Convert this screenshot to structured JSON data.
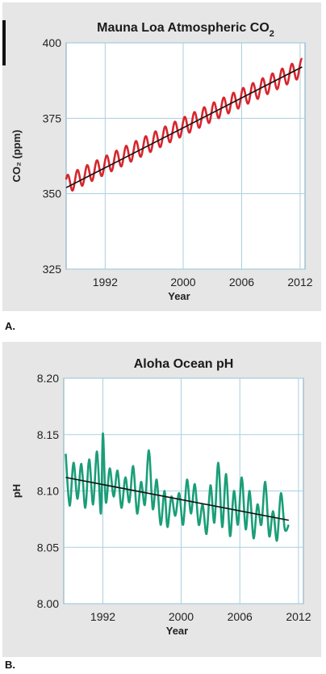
{
  "chart_data": [
    {
      "type": "line",
      "panel_label": "A.",
      "title": "Mauna Loa Atmospheric CO",
      "title_subscript": "2",
      "xlabel": "Year",
      "ylabel": "CO₂ (ppm)",
      "xlim": [
        1988,
        2012.5
      ],
      "ylim": [
        325,
        400
      ],
      "x_ticks": [
        1992,
        2000,
        2006,
        2012
      ],
      "y_ticks": [
        325,
        350,
        375,
        400
      ],
      "grid": true,
      "series": [
        {
          "kind": "seasonal",
          "color": "#d7262e",
          "start_year": 1988,
          "end_year": 2012.2,
          "trend_start": 353,
          "trend_slope": 1.6,
          "amplitude": 3
        },
        {
          "kind": "trend",
          "color": "#111111",
          "x": [
            1988,
            2012.2
          ],
          "y": [
            352,
            392
          ]
        }
      ]
    },
    {
      "type": "line",
      "panel_label": "B.",
      "title": "Aloha Ocean pH",
      "xlabel": "Year",
      "ylabel": "pH",
      "xlim": [
        1988,
        2012.5
      ],
      "ylim": [
        8.0,
        8.2
      ],
      "x_ticks": [
        1992,
        2000,
        2006,
        2012
      ],
      "y_ticks": [
        8.0,
        8.05,
        8.1,
        8.15,
        8.2
      ],
      "y_tick_labels": [
        "8.00",
        "8.05",
        "8.10",
        "8.15",
        "8.20"
      ],
      "grid": true,
      "series": [
        {
          "kind": "measured",
          "color": "#1a9e78",
          "x": [
            1988.2,
            1988.6,
            1989.0,
            1989.4,
            1989.8,
            1990.2,
            1990.6,
            1991.0,
            1991.4,
            1991.8,
            1992.0,
            1992.3,
            1992.7,
            1993.1,
            1993.5,
            1993.9,
            1994.3,
            1994.7,
            1995.1,
            1995.5,
            1995.9,
            1996.3,
            1996.7,
            1997.1,
            1997.5,
            1997.9,
            1998.3,
            1998.6,
            1999.0,
            1999.4,
            1999.8,
            2000.2,
            2000.6,
            2001.0,
            2001.4,
            2001.8,
            2002.2,
            2002.6,
            2003.0,
            2003.4,
            2003.8,
            2004.2,
            2004.6,
            2005.0,
            2005.4,
            2005.8,
            2006.2,
            2006.6,
            2007.0,
            2007.4,
            2007.8,
            2008.2,
            2008.6,
            2009.0,
            2009.4,
            2009.8,
            2010.2,
            2010.6,
            2011.0
          ],
          "y": [
            8.133,
            8.087,
            8.125,
            8.093,
            8.124,
            8.085,
            8.128,
            8.088,
            8.135,
            8.08,
            8.151,
            8.09,
            8.12,
            8.095,
            8.118,
            8.085,
            8.112,
            8.09,
            8.122,
            8.08,
            8.108,
            8.088,
            8.136,
            8.084,
            8.11,
            8.07,
            8.1,
            8.068,
            8.095,
            8.078,
            8.098,
            8.07,
            8.11,
            8.08,
            8.106,
            8.07,
            8.088,
            8.062,
            8.105,
            8.072,
            8.125,
            8.068,
            8.115,
            8.06,
            8.1,
            8.07,
            8.112,
            8.066,
            8.1,
            8.058,
            8.088,
            8.07,
            8.108,
            8.06,
            8.082,
            8.056,
            8.098,
            8.066,
            8.07
          ]
        },
        {
          "kind": "trend",
          "color": "#111111",
          "x": [
            1988.2,
            2011.0
          ],
          "y": [
            8.112,
            8.074
          ]
        }
      ]
    }
  ]
}
